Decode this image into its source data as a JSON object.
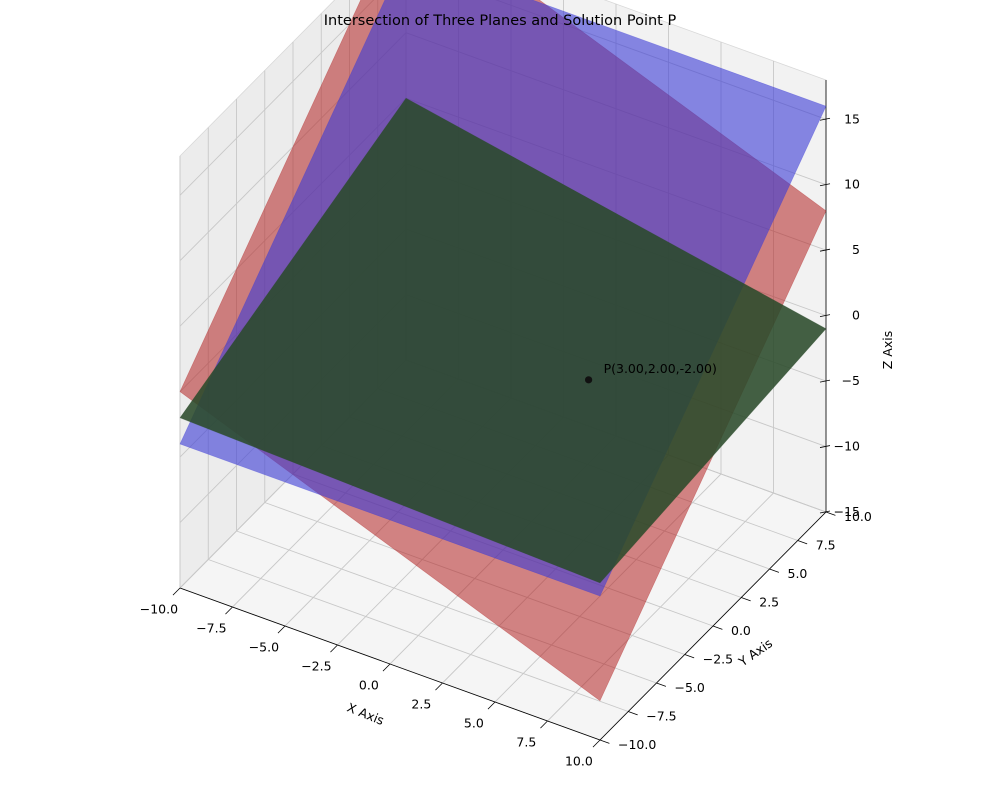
{
  "chart_data": {
    "type": "surface3d",
    "title": "Intersection of Three Planes and Solution Point P",
    "xlabel": "X Axis",
    "ylabel": "Y Axis",
    "zlabel": "Z Axis",
    "xlim": [
      -10,
      10
    ],
    "ylim": [
      -10,
      10
    ],
    "zlim": [
      -15,
      18
    ],
    "x_ticks": [
      -10,
      -7.5,
      -5,
      -2.5,
      0,
      2.5,
      5,
      7.5,
      10
    ],
    "x_tick_labels": [
      "−10.0",
      "−7.5",
      "−5.0",
      "−2.5",
      "0.0",
      "2.5",
      "5.0",
      "7.5",
      "10.0"
    ],
    "y_ticks": [
      -10,
      -7.5,
      -5,
      -2.5,
      0,
      2.5,
      5,
      7.5,
      10
    ],
    "y_tick_labels": [
      "−10.0",
      "−7.5",
      "−5.0",
      "−2.5",
      "0.0",
      "2.5",
      "5.0",
      "7.5",
      "10.0"
    ],
    "z_ticks": [
      -15,
      -10,
      -5,
      0,
      5,
      10,
      15
    ],
    "z_tick_labels": [
      "−15",
      "−10",
      "−5",
      "0",
      "5",
      "10",
      "15"
    ],
    "grid": true,
    "series": [
      {
        "corners_z": [
          0,
          -12,
          20,
          8
        ],
        "color": "#b22222",
        "opacity": 0.55
      },
      {
        "corners_z": [
          -4,
          -4,
          16,
          16
        ],
        "color": "#3b3bd6",
        "opacity": 0.6
      },
      {
        "corners_z": [
          -2,
          -3,
          5,
          -1
        ],
        "color": "#2a4a2a",
        "opacity": 0.88
      }
    ],
    "point": {
      "x": 3,
      "y": 2,
      "z": -2,
      "label": "P(3.00,2.00,-2.00)",
      "color": "#111111"
    }
  }
}
